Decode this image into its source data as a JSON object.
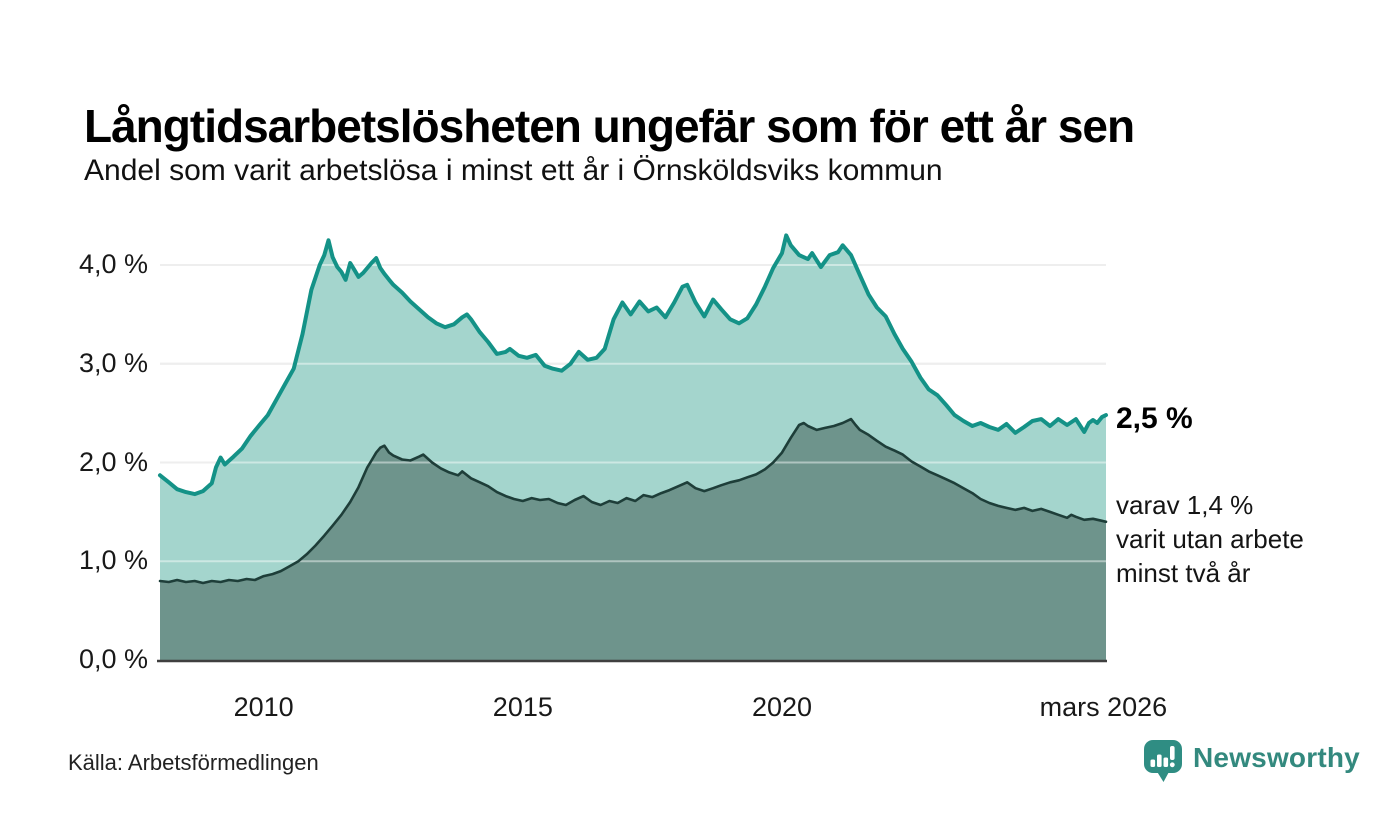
{
  "header": {
    "title": "Långtidsarbetslösheten ungefär som för ett år sen",
    "subtitle": "Andel som varit arbetslösa i minst ett år i Örnsköldsviks kommun"
  },
  "chart_data": {
    "type": "area",
    "title": "Långtidsarbetslösheten ungefär som för ett år sen",
    "subtitle": "Andel som varit arbetslösa i minst ett år i Örnsköldsviks kommun",
    "grid": true,
    "x_axis": {
      "min": 2008,
      "max": 2026.25,
      "ticks": [
        {
          "label": "2010",
          "year": 2010
        },
        {
          "label": "2015",
          "year": 2015
        },
        {
          "label": "2020",
          "year": 2020
        },
        {
          "label": "mars 2026",
          "year": 2026.2
        }
      ]
    },
    "y_axis": {
      "min": 0,
      "max": 4.35,
      "ticks": [
        {
          "label": "0,0 %",
          "value": 0
        },
        {
          "label": "1,0 %",
          "value": 1
        },
        {
          "label": "2,0 %",
          "value": 2
        },
        {
          "label": "3,0 %",
          "value": 3
        },
        {
          "label": "4,0 %",
          "value": 4
        }
      ]
    },
    "series": [
      {
        "name": "arbetslösa minst ett år",
        "color": "#149287",
        "fill": "#a4d5cd",
        "line_width": 4,
        "end_value": "2,5 %",
        "points": [
          [
            2008.0,
            1.87
          ],
          [
            2008.17,
            1.8
          ],
          [
            2008.33,
            1.73
          ],
          [
            2008.5,
            1.7
          ],
          [
            2008.67,
            1.68
          ],
          [
            2008.83,
            1.71
          ],
          [
            2009.0,
            1.79
          ],
          [
            2009.08,
            1.95
          ],
          [
            2009.17,
            2.05
          ],
          [
            2009.25,
            1.98
          ],
          [
            2009.42,
            2.06
          ],
          [
            2009.58,
            2.14
          ],
          [
            2009.75,
            2.27
          ],
          [
            2009.92,
            2.38
          ],
          [
            2010.08,
            2.48
          ],
          [
            2010.25,
            2.64
          ],
          [
            2010.42,
            2.8
          ],
          [
            2010.58,
            2.95
          ],
          [
            2010.75,
            3.3
          ],
          [
            2010.92,
            3.75
          ],
          [
            2011.08,
            4.0
          ],
          [
            2011.17,
            4.1
          ],
          [
            2011.25,
            4.25
          ],
          [
            2011.33,
            4.08
          ],
          [
            2011.42,
            3.98
          ],
          [
            2011.5,
            3.93
          ],
          [
            2011.58,
            3.85
          ],
          [
            2011.67,
            4.02
          ],
          [
            2011.75,
            3.95
          ],
          [
            2011.83,
            3.88
          ],
          [
            2011.92,
            3.92
          ],
          [
            2012.0,
            3.97
          ],
          [
            2012.08,
            4.02
          ],
          [
            2012.17,
            4.07
          ],
          [
            2012.25,
            3.97
          ],
          [
            2012.33,
            3.91
          ],
          [
            2012.42,
            3.85
          ],
          [
            2012.5,
            3.8
          ],
          [
            2012.67,
            3.72
          ],
          [
            2012.83,
            3.63
          ],
          [
            2013.0,
            3.55
          ],
          [
            2013.17,
            3.47
          ],
          [
            2013.33,
            3.41
          ],
          [
            2013.5,
            3.37
          ],
          [
            2013.67,
            3.4
          ],
          [
            2013.83,
            3.47
          ],
          [
            2013.92,
            3.5
          ],
          [
            2014.0,
            3.45
          ],
          [
            2014.17,
            3.32
          ],
          [
            2014.33,
            3.22
          ],
          [
            2014.5,
            3.1
          ],
          [
            2014.67,
            3.12
          ],
          [
            2014.75,
            3.15
          ],
          [
            2014.92,
            3.08
          ],
          [
            2015.08,
            3.06
          ],
          [
            2015.25,
            3.09
          ],
          [
            2015.42,
            2.98
          ],
          [
            2015.58,
            2.95
          ],
          [
            2015.75,
            2.93
          ],
          [
            2015.92,
            3.0
          ],
          [
            2016.08,
            3.12
          ],
          [
            2016.25,
            3.04
          ],
          [
            2016.42,
            3.06
          ],
          [
            2016.58,
            3.15
          ],
          [
            2016.75,
            3.45
          ],
          [
            2016.92,
            3.62
          ],
          [
            2017.08,
            3.5
          ],
          [
            2017.25,
            3.63
          ],
          [
            2017.42,
            3.53
          ],
          [
            2017.58,
            3.57
          ],
          [
            2017.75,
            3.47
          ],
          [
            2017.92,
            3.62
          ],
          [
            2018.08,
            3.78
          ],
          [
            2018.17,
            3.8
          ],
          [
            2018.33,
            3.62
          ],
          [
            2018.5,
            3.48
          ],
          [
            2018.67,
            3.65
          ],
          [
            2018.83,
            3.55
          ],
          [
            2019.0,
            3.45
          ],
          [
            2019.17,
            3.41
          ],
          [
            2019.33,
            3.46
          ],
          [
            2019.5,
            3.6
          ],
          [
            2019.67,
            3.78
          ],
          [
            2019.83,
            3.97
          ],
          [
            2020.0,
            4.12
          ],
          [
            2020.08,
            4.3
          ],
          [
            2020.17,
            4.2
          ],
          [
            2020.33,
            4.1
          ],
          [
            2020.5,
            4.06
          ],
          [
            2020.58,
            4.12
          ],
          [
            2020.75,
            3.98
          ],
          [
            2020.92,
            4.1
          ],
          [
            2021.08,
            4.13
          ],
          [
            2021.17,
            4.2
          ],
          [
            2021.33,
            4.1
          ],
          [
            2021.5,
            3.9
          ],
          [
            2021.67,
            3.7
          ],
          [
            2021.83,
            3.57
          ],
          [
            2022.0,
            3.48
          ],
          [
            2022.17,
            3.3
          ],
          [
            2022.33,
            3.15
          ],
          [
            2022.5,
            3.02
          ],
          [
            2022.67,
            2.86
          ],
          [
            2022.83,
            2.74
          ],
          [
            2023.0,
            2.68
          ],
          [
            2023.17,
            2.58
          ],
          [
            2023.33,
            2.48
          ],
          [
            2023.5,
            2.42
          ],
          [
            2023.67,
            2.37
          ],
          [
            2023.83,
            2.4
          ],
          [
            2024.0,
            2.36
          ],
          [
            2024.17,
            2.33
          ],
          [
            2024.33,
            2.39
          ],
          [
            2024.5,
            2.3
          ],
          [
            2024.67,
            2.36
          ],
          [
            2024.83,
            2.42
          ],
          [
            2025.0,
            2.44
          ],
          [
            2025.17,
            2.37
          ],
          [
            2025.33,
            2.44
          ],
          [
            2025.5,
            2.38
          ],
          [
            2025.67,
            2.44
          ],
          [
            2025.83,
            2.31
          ],
          [
            2025.92,
            2.4
          ],
          [
            2026.0,
            2.43
          ],
          [
            2026.08,
            2.4
          ],
          [
            2026.17,
            2.46
          ],
          [
            2026.25,
            2.48
          ]
        ]
      },
      {
        "name": "arbetslösa minst två år",
        "color": "#1e3e39",
        "fill": "#6e948c",
        "line_width": 2.6,
        "end_value": "1,4 %",
        "points": [
          [
            2008.0,
            0.8
          ],
          [
            2008.17,
            0.79
          ],
          [
            2008.33,
            0.81
          ],
          [
            2008.5,
            0.79
          ],
          [
            2008.67,
            0.8
          ],
          [
            2008.83,
            0.78
          ],
          [
            2009.0,
            0.8
          ],
          [
            2009.17,
            0.79
          ],
          [
            2009.33,
            0.81
          ],
          [
            2009.5,
            0.8
          ],
          [
            2009.67,
            0.82
          ],
          [
            2009.83,
            0.81
          ],
          [
            2010.0,
            0.85
          ],
          [
            2010.17,
            0.87
          ],
          [
            2010.33,
            0.9
          ],
          [
            2010.5,
            0.95
          ],
          [
            2010.67,
            1.0
          ],
          [
            2010.83,
            1.07
          ],
          [
            2011.0,
            1.16
          ],
          [
            2011.17,
            1.26
          ],
          [
            2011.33,
            1.36
          ],
          [
            2011.5,
            1.47
          ],
          [
            2011.67,
            1.6
          ],
          [
            2011.83,
            1.75
          ],
          [
            2012.0,
            1.95
          ],
          [
            2012.08,
            2.02
          ],
          [
            2012.17,
            2.1
          ],
          [
            2012.25,
            2.15
          ],
          [
            2012.33,
            2.17
          ],
          [
            2012.42,
            2.1
          ],
          [
            2012.5,
            2.07
          ],
          [
            2012.67,
            2.03
          ],
          [
            2012.83,
            2.02
          ],
          [
            2013.0,
            2.06
          ],
          [
            2013.08,
            2.08
          ],
          [
            2013.25,
            2.0
          ],
          [
            2013.42,
            1.94
          ],
          [
            2013.58,
            1.9
          ],
          [
            2013.75,
            1.87
          ],
          [
            2013.83,
            1.91
          ],
          [
            2014.0,
            1.84
          ],
          [
            2014.17,
            1.8
          ],
          [
            2014.33,
            1.76
          ],
          [
            2014.5,
            1.7
          ],
          [
            2014.67,
            1.66
          ],
          [
            2014.83,
            1.63
          ],
          [
            2015.0,
            1.61
          ],
          [
            2015.17,
            1.64
          ],
          [
            2015.33,
            1.62
          ],
          [
            2015.5,
            1.63
          ],
          [
            2015.67,
            1.59
          ],
          [
            2015.83,
            1.57
          ],
          [
            2016.0,
            1.62
          ],
          [
            2016.17,
            1.66
          ],
          [
            2016.33,
            1.6
          ],
          [
            2016.5,
            1.57
          ],
          [
            2016.67,
            1.61
          ],
          [
            2016.83,
            1.59
          ],
          [
            2017.0,
            1.64
          ],
          [
            2017.17,
            1.61
          ],
          [
            2017.33,
            1.67
          ],
          [
            2017.5,
            1.65
          ],
          [
            2017.67,
            1.69
          ],
          [
            2017.83,
            1.72
          ],
          [
            2018.0,
            1.76
          ],
          [
            2018.17,
            1.8
          ],
          [
            2018.33,
            1.74
          ],
          [
            2018.5,
            1.71
          ],
          [
            2018.67,
            1.74
          ],
          [
            2018.83,
            1.77
          ],
          [
            2019.0,
            1.8
          ],
          [
            2019.17,
            1.82
          ],
          [
            2019.33,
            1.85
          ],
          [
            2019.5,
            1.88
          ],
          [
            2019.67,
            1.93
          ],
          [
            2019.83,
            2.0
          ],
          [
            2020.0,
            2.1
          ],
          [
            2020.17,
            2.25
          ],
          [
            2020.33,
            2.38
          ],
          [
            2020.42,
            2.4
          ],
          [
            2020.5,
            2.37
          ],
          [
            2020.67,
            2.33
          ],
          [
            2020.83,
            2.35
          ],
          [
            2021.0,
            2.37
          ],
          [
            2021.17,
            2.4
          ],
          [
            2021.33,
            2.44
          ],
          [
            2021.42,
            2.38
          ],
          [
            2021.5,
            2.33
          ],
          [
            2021.67,
            2.28
          ],
          [
            2021.83,
            2.22
          ],
          [
            2022.0,
            2.16
          ],
          [
            2022.17,
            2.12
          ],
          [
            2022.33,
            2.08
          ],
          [
            2022.5,
            2.01
          ],
          [
            2022.67,
            1.96
          ],
          [
            2022.83,
            1.91
          ],
          [
            2023.0,
            1.87
          ],
          [
            2023.17,
            1.83
          ],
          [
            2023.33,
            1.79
          ],
          [
            2023.5,
            1.74
          ],
          [
            2023.67,
            1.69
          ],
          [
            2023.83,
            1.63
          ],
          [
            2024.0,
            1.59
          ],
          [
            2024.17,
            1.56
          ],
          [
            2024.33,
            1.54
          ],
          [
            2024.5,
            1.52
          ],
          [
            2024.67,
            1.54
          ],
          [
            2024.83,
            1.51
          ],
          [
            2025.0,
            1.53
          ],
          [
            2025.17,
            1.5
          ],
          [
            2025.33,
            1.47
          ],
          [
            2025.5,
            1.44
          ],
          [
            2025.58,
            1.47
          ],
          [
            2025.67,
            1.45
          ],
          [
            2025.83,
            1.42
          ],
          [
            2026.0,
            1.43
          ],
          [
            2026.17,
            1.41
          ],
          [
            2026.25,
            1.4
          ]
        ]
      }
    ],
    "annotations": {
      "end_label": "2,5 %",
      "sub_label_lines": [
        "varav 1,4 %",
        "varit utan arbete",
        "minst två år"
      ]
    },
    "colors": {
      "grid": "#e0e0e0",
      "axis": "#3f3f3f"
    }
  },
  "footer": {
    "source": "Källa: Arbetsförmedlingen",
    "brand": "Newsworthy",
    "brand_color": "#33897e"
  }
}
